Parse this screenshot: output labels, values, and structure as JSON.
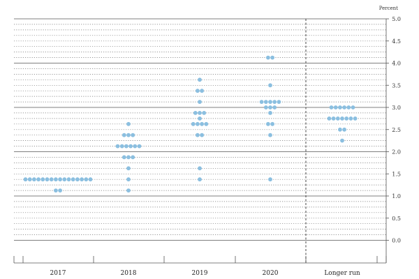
{
  "chart_data": {
    "type": "scatter",
    "unit_label": "Percent",
    "categories": [
      "2017",
      "2018",
      "2019",
      "2020",
      "Longer run"
    ],
    "y_ticks": [
      "0.0",
      "0.5",
      "1.0",
      "1.5",
      "2.0",
      "2.5",
      "3.0",
      "3.5",
      "4.0",
      "4.5",
      "5.0"
    ],
    "ylim": [
      -0.25,
      5.0
    ],
    "dot_color": "#8bbfe0",
    "grid": "solid lines at whole percents, dotted lines at each eighth",
    "divider": "dashed line before Longer run",
    "points": [
      {
        "x": "2017",
        "y": 1.375,
        "count": 16
      },
      {
        "x": "2017",
        "y": 1.125,
        "count": 2
      },
      {
        "x": "2018",
        "y": 2.625,
        "count": 1
      },
      {
        "x": "2018",
        "y": 2.375,
        "count": 3
      },
      {
        "x": "2018",
        "y": 2.125,
        "count": 6
      },
      {
        "x": "2018",
        "y": 1.875,
        "count": 3
      },
      {
        "x": "2018",
        "y": 1.625,
        "count": 1
      },
      {
        "x": "2018",
        "y": 1.375,
        "count": 1
      },
      {
        "x": "2018",
        "y": 1.125,
        "count": 1
      },
      {
        "x": "2019",
        "y": 3.625,
        "count": 1
      },
      {
        "x": "2019",
        "y": 3.375,
        "count": 2
      },
      {
        "x": "2019",
        "y": 3.125,
        "count": 1
      },
      {
        "x": "2019",
        "y": 2.875,
        "count": 3
      },
      {
        "x": "2019",
        "y": 2.75,
        "count": 1
      },
      {
        "x": "2019",
        "y": 2.625,
        "count": 4
      },
      {
        "x": "2019",
        "y": 2.375,
        "count": 2
      },
      {
        "x": "2019",
        "y": 1.625,
        "count": 1
      },
      {
        "x": "2019",
        "y": 1.375,
        "count": 1
      },
      {
        "x": "2020",
        "y": 4.125,
        "count": 2
      },
      {
        "x": "2020",
        "y": 3.5,
        "count": 1
      },
      {
        "x": "2020",
        "y": 3.125,
        "count": 5
      },
      {
        "x": "2020",
        "y": 3.0,
        "count": 3
      },
      {
        "x": "2020",
        "y": 2.875,
        "count": 1
      },
      {
        "x": "2020",
        "y": 2.625,
        "count": 2
      },
      {
        "x": "2020",
        "y": 2.375,
        "count": 1
      },
      {
        "x": "2020",
        "y": 1.375,
        "count": 1
      },
      {
        "x": "Longer run",
        "y": 3.0,
        "count": 6
      },
      {
        "x": "Longer run",
        "y": 2.75,
        "count": 7
      },
      {
        "x": "Longer run",
        "y": 2.5,
        "count": 2
      },
      {
        "x": "Longer run",
        "y": 2.25,
        "count": 1
      }
    ]
  }
}
